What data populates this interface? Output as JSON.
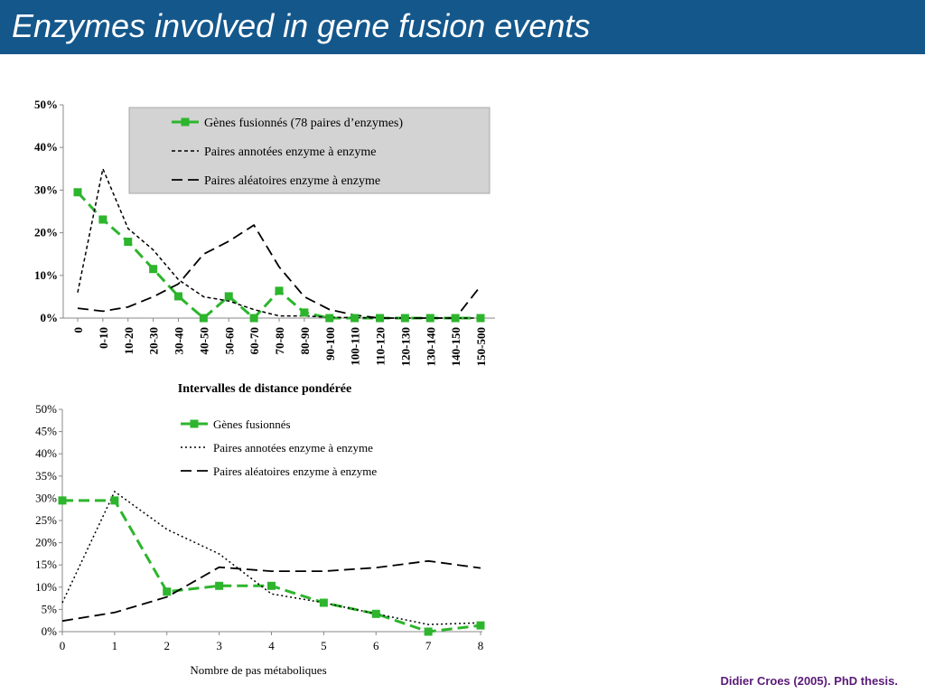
{
  "page": {
    "title": "Enzymes involved in gene fusion events",
    "credit": "Didier Croes (2005). PhD thesis."
  },
  "colors": {
    "title_bar": "#14578b",
    "series_fused": "#2db52d",
    "legend_box": "#d3d3d3",
    "credit": "#5a1a78"
  },
  "chart_data": [
    {
      "type": "line",
      "title": "",
      "xlabel": "Intervalles de distance pondérée",
      "ylabel": "",
      "categories": [
        "0",
        "0-10",
        "10-20",
        "20-30",
        "30-40",
        "40-50",
        "50-60",
        "60-70",
        "70-80",
        "80-90",
        "90-100",
        "100-110",
        "110-120",
        "120-130",
        "130-140",
        "140-150",
        "150-500"
      ],
      "yticks": [
        "0%",
        "10%",
        "20%",
        "30%",
        "40%",
        "50%"
      ],
      "ylim": [
        0,
        50
      ],
      "grid": false,
      "legend_position": "top-right",
      "series": [
        {
          "name": "Gènes fusionnés (78 paires d’enzymes)",
          "style": "green-dashed-square",
          "values": [
            29.5,
            23.1,
            17.9,
            11.5,
            5.1,
            0,
            5.1,
            0,
            6.4,
            1.3,
            0,
            0,
            0,
            0,
            0,
            0,
            0
          ]
        },
        {
          "name": "Paires annotées enzyme à enzyme",
          "style": "short-dash",
          "values": [
            6,
            35,
            21,
            16,
            9,
            5,
            4,
            2,
            0.5,
            0.5,
            0.2,
            0.1,
            0,
            0,
            0,
            0,
            0
          ]
        },
        {
          "name": "Paires aléatoires enzyme à enzyme",
          "style": "long-dash",
          "values": [
            2.3,
            1.6,
            2.6,
            5,
            8,
            15,
            18,
            21.8,
            12,
            5,
            2,
            0.7,
            0,
            0,
            0,
            0,
            7.5
          ]
        }
      ]
    },
    {
      "type": "line",
      "title": "",
      "xlabel": "Nombre de pas métaboliques",
      "ylabel": "",
      "categories": [
        "0",
        "1",
        "2",
        "3",
        "4",
        "5",
        "6",
        "7",
        "8"
      ],
      "yticks": [
        "0%",
        "5%",
        "10%",
        "15%",
        "20%",
        "25%",
        "30%",
        "35%",
        "40%",
        "45%",
        "50%"
      ],
      "ylim": [
        0,
        50
      ],
      "grid": false,
      "legend_position": "top-right",
      "series": [
        {
          "name": "Gènes fusionnés",
          "style": "green-dashed-square",
          "values": [
            29.5,
            29.5,
            9,
            10.3,
            10.3,
            6.5,
            4,
            0,
            1.4
          ]
        },
        {
          "name": "Paires annotées enzyme à enzyme",
          "style": "dotted",
          "values": [
            6.5,
            31.5,
            23,
            17.5,
            8.5,
            6.5,
            4,
            1.6,
            2
          ]
        },
        {
          "name": "Paires aléatoires enzyme à enzyme",
          "style": "long-dash",
          "values": [
            2.4,
            4.3,
            7.8,
            14.5,
            13.6,
            13.6,
            14.4,
            15.9,
            14.3
          ]
        }
      ]
    }
  ]
}
